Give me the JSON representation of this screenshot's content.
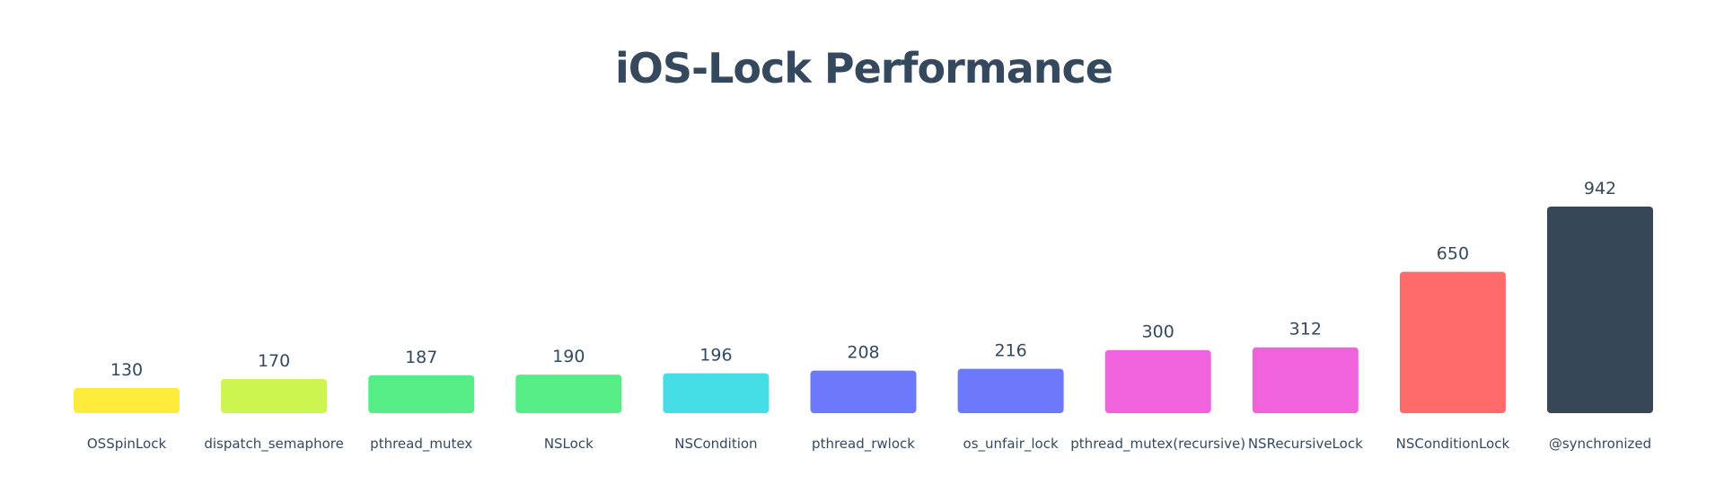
{
  "chart_data": {
    "type": "bar",
    "title": "iOS-Lock Performance",
    "xlabel": "",
    "ylabel": "",
    "ylim": [
      0,
      942
    ],
    "grid": false,
    "legend": "none",
    "categories": [
      "OSSpinLock",
      "dispatch_semaphore",
      "pthread_mutex",
      "NSLock",
      "NSCondition",
      "pthread_rwlock",
      "os_unfair_lock",
      "pthread_mutex(recursive)",
      "NSRecursiveLock",
      "NSConditionLock",
      "@synchronized"
    ],
    "values": [
      130,
      170,
      187,
      190,
      196,
      208,
      216,
      300,
      312,
      650,
      942
    ],
    "value_labels": [
      "130",
      "170",
      "187",
      "190",
      "196",
      "208",
      "216",
      "300",
      "312",
      "650",
      "942"
    ],
    "colors": [
      "#ffeb3b",
      "#ccf550",
      "#56ed87",
      "#56ed87",
      "#45dee6",
      "#6c79fd",
      "#6c79fd",
      "#f063dd",
      "#f063dd",
      "#ff6b6b",
      "#374757"
    ]
  },
  "theme": {
    "text_color": "#35495e"
  }
}
